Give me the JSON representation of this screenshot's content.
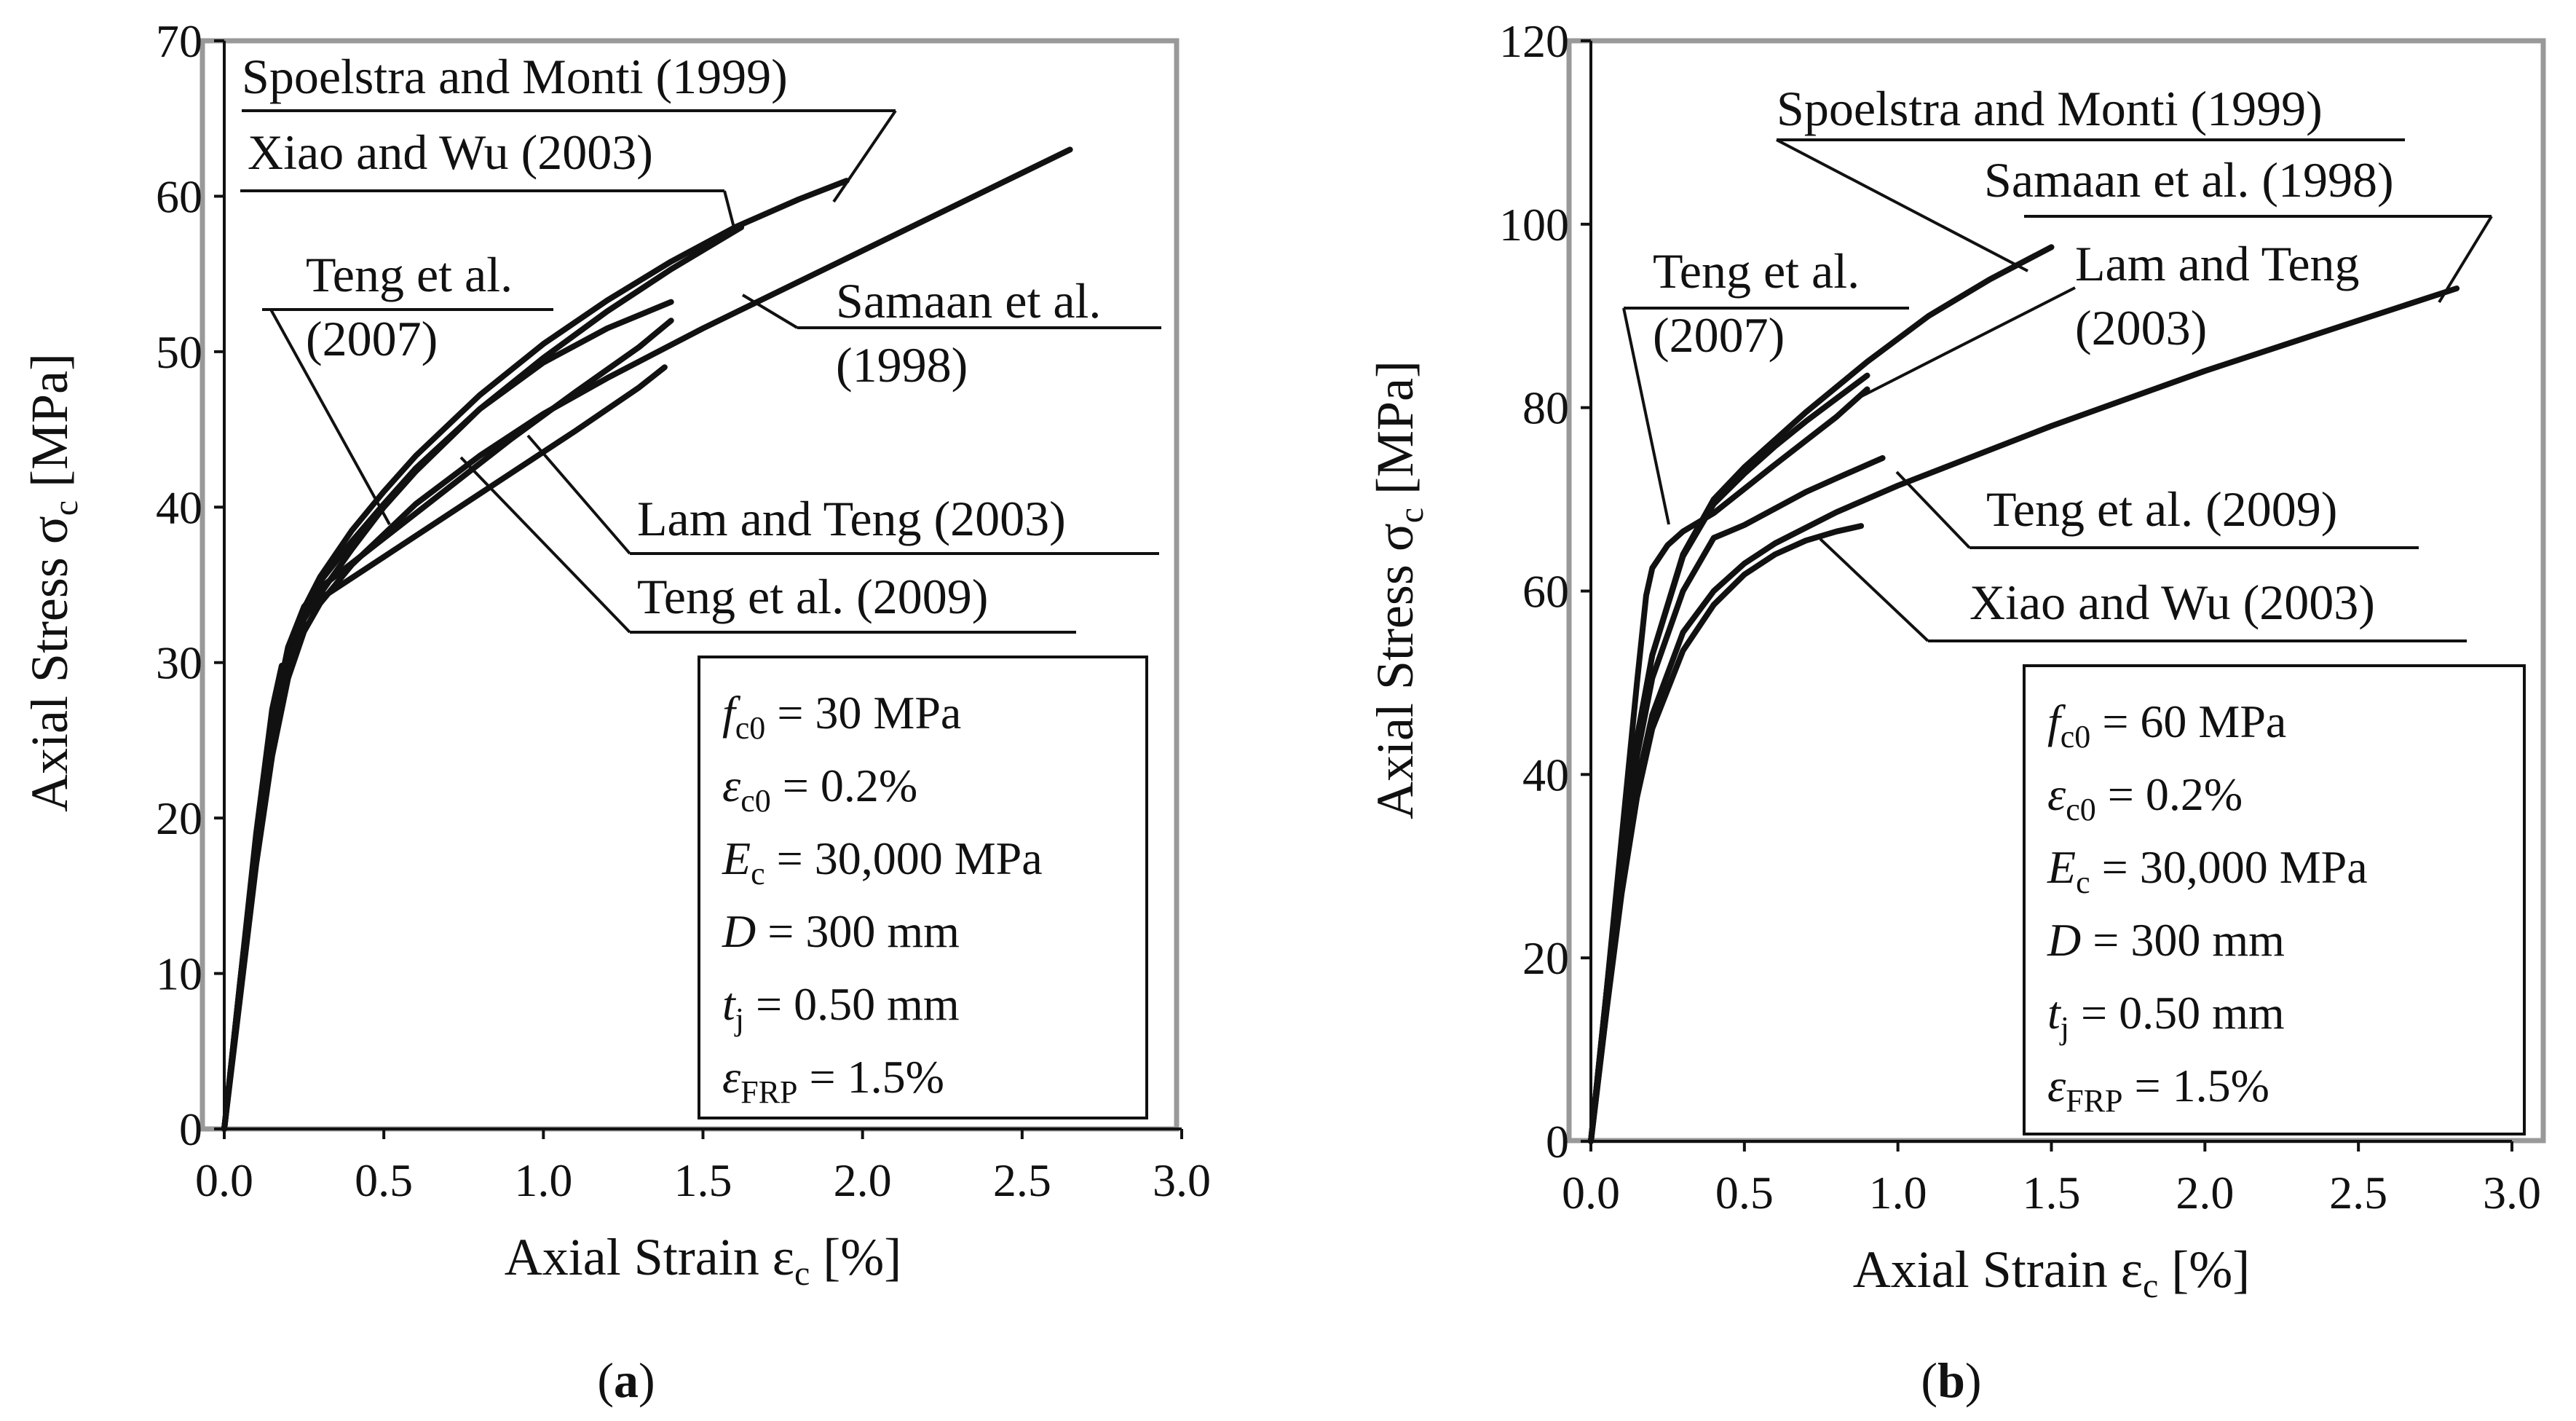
{
  "chart_data": [
    {
      "type": "line",
      "panel": "a",
      "caption_letter": "a",
      "caption_open": "(",
      "caption_close": ")",
      "xlabel_main": "Axial Strain ε",
      "xlabel_sub": "c",
      "xlabel_unit": " [%]",
      "ylabel_main": "Axial Stress  σ",
      "ylabel_sub": "c",
      "ylabel_unit": " [MPa]",
      "xlim": [
        0,
        3.0
      ],
      "ylim": [
        0,
        70
      ],
      "xticks": [
        0,
        0.5,
        1.0,
        1.5,
        2.0,
        2.5,
        3.0
      ],
      "xtick_labels": [
        "0.0",
        "0.5",
        "1.0",
        "1.5",
        "2.0",
        "2.5",
        "3.0"
      ],
      "yticks": [
        0,
        10,
        20,
        30,
        40,
        50,
        60,
        70
      ],
      "ytick_labels": [
        "0",
        "10",
        "20",
        "30",
        "40",
        "50",
        "60",
        "70"
      ],
      "series": [
        {
          "name": "Spoelstra and Monti (1999)",
          "x": [
            0,
            0.05,
            0.1,
            0.15,
            0.2,
            0.25,
            0.3,
            0.4,
            0.5,
            0.6,
            0.8,
            1.0,
            1.2,
            1.4,
            1.6,
            1.8,
            1.95
          ],
          "y": [
            0,
            9,
            18,
            25.5,
            30.5,
            33.5,
            35.5,
            38.5,
            41,
            43.3,
            47.2,
            50.5,
            53.3,
            55.8,
            58,
            59.8,
            61
          ]
        },
        {
          "name": "Xiao and Wu (2003)",
          "x": [
            0,
            0.05,
            0.1,
            0.15,
            0.2,
            0.25,
            0.3,
            0.4,
            0.5,
            0.6,
            0.8,
            1.0,
            1.2,
            1.4,
            1.62
          ],
          "y": [
            0,
            9,
            18,
            25.5,
            30.5,
            33.5,
            35.2,
            37.8,
            40.2,
            42.5,
            46.3,
            49.6,
            52.6,
            55.3,
            58
          ]
        },
        {
          "name": "Samaan et al. (1998)",
          "x": [
            0,
            0.05,
            0.1,
            0.15,
            0.2,
            0.25,
            0.3,
            0.4,
            0.6,
            0.8,
            1.0,
            1.2,
            1.5,
            2.0,
            2.65
          ],
          "y": [
            0,
            8.5,
            17,
            24,
            29,
            32,
            33.8,
            36.3,
            40.2,
            43.3,
            46,
            48.3,
            51.5,
            56.5,
            63
          ]
        },
        {
          "name": "Lam and Teng (2003)",
          "x": [
            0,
            0.05,
            0.1,
            0.15,
            0.2,
            0.25,
            0.3,
            0.5,
            0.7,
            0.9,
            1.1,
            1.3,
            1.4
          ],
          "y": [
            0,
            9.5,
            18.5,
            26,
            31,
            33.6,
            34.8,
            38,
            41.2,
            44.4,
            47.4,
            50.3,
            52
          ]
        },
        {
          "name": "Teng et al. (2009)",
          "x": [
            0,
            0.05,
            0.1,
            0.15,
            0.2,
            0.25,
            0.3,
            0.5,
            0.7,
            0.9,
            1.1,
            1.3,
            1.38
          ],
          "y": [
            0,
            9.5,
            18.5,
            26,
            31,
            33.4,
            34.1,
            36.8,
            39.5,
            42.2,
            44.9,
            47.7,
            49
          ]
        },
        {
          "name": "Teng et al. (2007)",
          "x": [
            0,
            0.05,
            0.1,
            0.15,
            0.18,
            0.2,
            0.22,
            0.25,
            0.3,
            0.4,
            0.5,
            0.6,
            0.8,
            1.0,
            1.2,
            1.4
          ],
          "y": [
            0,
            9.5,
            19,
            27,
            29.8,
            29.2,
            31,
            32.8,
            34.4,
            37.3,
            40,
            42.3,
            46.3,
            49.3,
            51.5,
            53.2
          ]
        }
      ],
      "annotations": [
        {
          "lines": [
            "Spoelstra and Monti (1999)"
          ]
        },
        {
          "lines": [
            "Xiao and Wu (2003)"
          ]
        },
        {
          "lines": [
            "Teng et al.",
            "(2007)"
          ]
        },
        {
          "lines": [
            "Samaan et al.",
            "(1998)"
          ]
        },
        {
          "lines": [
            "Lam and Teng (2003)"
          ]
        },
        {
          "lines": [
            "Teng et al. (2009)"
          ]
        }
      ],
      "parameters": [
        {
          "sym": "f",
          "sub": "c0",
          "rest": " = 30 MPa"
        },
        {
          "sym": "ε",
          "sub": "c0",
          "rest": " = 0.2%"
        },
        {
          "sym": "E",
          "sub": "c",
          "rest": " = 30,000 MPa"
        },
        {
          "sym": "D",
          "sub": "",
          "rest": " = 300 mm"
        },
        {
          "sym": "t",
          "sub": "j",
          "rest": " = 0.50 mm"
        },
        {
          "sym": "ε",
          "sub": "FRP",
          "rest": " = 1.5%"
        }
      ]
    },
    {
      "type": "line",
      "panel": "b",
      "caption_letter": "b",
      "caption_open": "(",
      "caption_close": ")",
      "xlabel_main": "Axial Strain ε",
      "xlabel_sub": "c",
      "xlabel_unit": " [%]",
      "ylabel_main": "Axial Stress  σ",
      "ylabel_sub": "c",
      "ylabel_unit": " [MPa]",
      "xlim": [
        0,
        3.0
      ],
      "ylim": [
        0,
        120
      ],
      "xticks": [
        0,
        0.5,
        1.0,
        1.5,
        2.0,
        2.5,
        3.0
      ],
      "xtick_labels": [
        "0.0",
        "0.5",
        "1.0",
        "1.5",
        "2.0",
        "2.5",
        "3.0"
      ],
      "yticks": [
        0,
        20,
        40,
        60,
        80,
        100,
        120
      ],
      "ytick_labels": [
        "0",
        "20",
        "40",
        "60",
        "80",
        "100",
        "120"
      ],
      "series": [
        {
          "name": "Spoelstra and Monti (1999)",
          "x": [
            0,
            0.05,
            0.1,
            0.15,
            0.2,
            0.3,
            0.4,
            0.5,
            0.7,
            0.9,
            1.1,
            1.3,
            1.5
          ],
          "y": [
            0,
            16,
            32,
            44,
            53,
            64,
            70,
            73.5,
            79.5,
            85,
            90,
            94,
            97.5
          ]
        },
        {
          "name": "Samaan et al. (1998)",
          "x": [
            0,
            0.05,
            0.1,
            0.15,
            0.2,
            0.3,
            0.4,
            0.5,
            0.6,
            0.8,
            1.0,
            1.5,
            2.0,
            2.5,
            2.82
          ],
          "y": [
            0,
            14,
            28,
            39,
            46.5,
            55.5,
            60,
            63,
            65.2,
            68.6,
            71.5,
            78,
            84,
            89.5,
            93
          ]
        },
        {
          "name": "Lam and Teng (2003)",
          "x": [
            0,
            0.05,
            0.1,
            0.15,
            0.2,
            0.3,
            0.4,
            0.5,
            0.6,
            0.7,
            0.8,
            0.9
          ],
          "y": [
            0,
            16,
            32,
            44,
            53,
            63.8,
            69.5,
            72.8,
            75.8,
            78.5,
            81,
            83.5
          ]
        },
        {
          "name": "Teng et al. (2009)",
          "x": [
            0,
            0.05,
            0.1,
            0.15,
            0.2,
            0.3,
            0.4,
            0.45,
            0.5,
            0.6,
            0.7,
            0.8,
            0.95
          ],
          "y": [
            0,
            15,
            30,
            42,
            50.5,
            60,
            65.8,
            66.5,
            67.2,
            69,
            70.8,
            72.3,
            74.5
          ]
        },
        {
          "name": "Xiao and Wu (2003)",
          "x": [
            0,
            0.05,
            0.1,
            0.15,
            0.2,
            0.3,
            0.4,
            0.5,
            0.6,
            0.7,
            0.8,
            0.88
          ],
          "y": [
            0,
            14,
            27,
            37.5,
            45,
            53.5,
            58.5,
            61.8,
            64,
            65.5,
            66.5,
            67.1
          ]
        },
        {
          "name": "Teng et al. (2007)",
          "x": [
            0,
            0.05,
            0.1,
            0.15,
            0.18,
            0.2,
            0.25,
            0.3,
            0.4,
            0.6,
            0.8,
            0.9
          ],
          "y": [
            0,
            16,
            33,
            50,
            59.5,
            62.5,
            65,
            66.5,
            68.5,
            73.8,
            79,
            82
          ]
        }
      ],
      "annotations": [
        {
          "lines": [
            "Spoelstra and Monti (1999)"
          ]
        },
        {
          "lines": [
            "Samaan et al. (1998)"
          ]
        },
        {
          "lines": [
            "Lam and Teng",
            "(2003)"
          ]
        },
        {
          "lines": [
            "Teng et al.",
            "(2007)"
          ]
        },
        {
          "lines": [
            "Teng et al. (2009)"
          ]
        },
        {
          "lines": [
            "Xiao and Wu (2003)"
          ]
        }
      ],
      "parameters": [
        {
          "sym": "f",
          "sub": "c0",
          "rest": " = 60 MPa"
        },
        {
          "sym": "ε",
          "sub": "c0",
          "rest": " = 0.2%"
        },
        {
          "sym": "E",
          "sub": "c",
          "rest": " = 30,000 MPa"
        },
        {
          "sym": "D",
          "sub": "",
          "rest": " = 300 mm"
        },
        {
          "sym": "t",
          "sub": "j",
          "rest": " = 0.50 mm"
        },
        {
          "sym": "ε",
          "sub": "FRP",
          "rest": " = 1.5%"
        }
      ]
    }
  ]
}
